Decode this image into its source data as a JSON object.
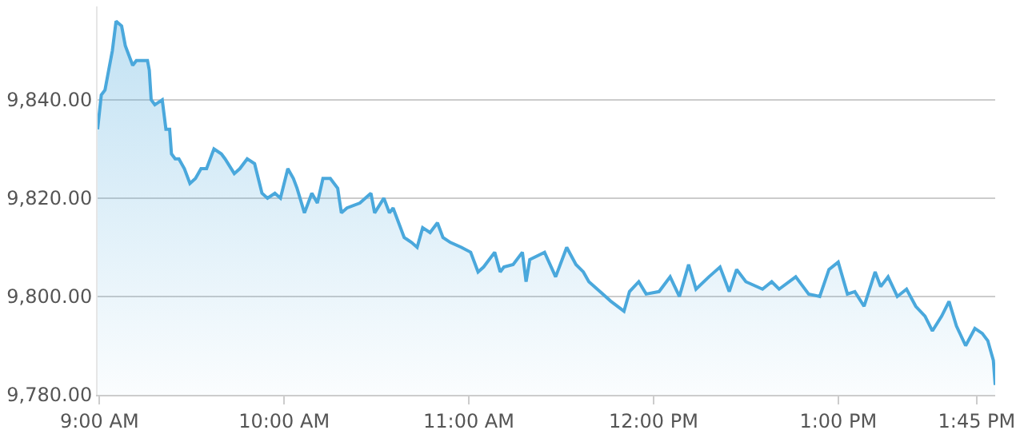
{
  "chart_data": {
    "type": "area",
    "x": [
      8.99,
      9.01,
      9.03,
      9.05,
      9.07,
      9.09,
      9.12,
      9.14,
      9.18,
      9.2,
      9.26,
      9.27,
      9.28,
      9.3,
      9.34,
      9.36,
      9.38,
      9.39,
      9.41,
      9.43,
      9.46,
      9.49,
      9.52,
      9.55,
      9.58,
      9.62,
      9.66,
      9.68,
      9.73,
      9.76,
      9.8,
      9.84,
      9.88,
      9.91,
      9.95,
      9.98,
      10.02,
      10.05,
      10.07,
      10.11,
      10.15,
      10.18,
      10.21,
      10.25,
      10.29,
      10.31,
      10.34,
      10.41,
      10.47,
      10.49,
      10.54,
      10.57,
      10.59,
      10.65,
      10.69,
      10.72,
      10.75,
      10.79,
      10.83,
      10.86,
      10.9,
      10.96,
      11.01,
      11.05,
      11.08,
      11.14,
      11.17,
      11.19,
      11.24,
      11.29,
      11.31,
      11.33,
      11.41,
      11.47,
      11.53,
      11.58,
      11.62,
      11.65,
      11.71,
      11.77,
      11.84,
      11.87,
      11.92,
      11.96,
      12.03,
      12.09,
      12.14,
      12.19,
      12.23,
      12.3,
      12.36,
      12.41,
      12.45,
      12.5,
      12.59,
      12.64,
      12.68,
      12.77,
      12.81,
      12.84,
      12.9,
      12.95,
      13.0,
      13.05,
      13.09,
      13.14,
      13.2,
      13.23,
      13.27,
      13.32,
      13.37,
      13.42,
      13.47,
      13.51,
      13.56,
      13.6,
      13.64,
      13.69,
      13.74,
      13.78,
      13.81,
      13.84,
      13.85
    ],
    "series": [
      {
        "color": "#4aa8dc",
        "values": [
          9834,
          9841,
          9842,
          9846,
          9850,
          9856,
          9855,
          9851,
          9847,
          9848,
          9848,
          9846,
          9840,
          9839,
          9840,
          9834,
          9834,
          9829,
          9828,
          9828,
          9826,
          9823,
          9824,
          9826,
          9826,
          9830,
          9829,
          9828,
          9825,
          9826,
          9828,
          9827,
          9821,
          9820,
          9821,
          9820,
          9826,
          9824,
          9822,
          9817,
          9821,
          9819,
          9824,
          9824,
          9822,
          9817,
          9818,
          9819,
          9821,
          9817,
          9820,
          9817,
          9818,
          9812,
          9811,
          9810,
          9814,
          9813,
          9815,
          9812,
          9811,
          9810,
          9809,
          9805,
          9806,
          9809,
          9805,
          9806,
          9806.5,
          9809,
          9803,
          9807.5,
          9809,
          9804,
          9810,
          9806.5,
          9805,
          9803,
          9801,
          9799,
          9797,
          9801,
          9803,
          9800.5,
          9801,
          9804,
          9800,
          9806.5,
          9801.5,
          9804,
          9806,
          9801,
          9805.5,
          9803,
          9801.5,
          9803,
          9801.5,
          9804,
          9802,
          9800.5,
          9800,
          9805.5,
          9807,
          9800.5,
          9801,
          9798,
          9805,
          9802,
          9804,
          9800,
          9801.5,
          9798,
          9796,
          9793,
          9796,
          9799,
          9794,
          9790,
          9793.5,
          9792.5,
          9791,
          9787,
          9782
        ]
      }
    ],
    "xlim": [
      8.99,
      13.85
    ],
    "xticks": [
      {
        "value": 9,
        "label": "9:00 AM"
      },
      {
        "value": 10,
        "label": "10:00 AM"
      },
      {
        "value": 11,
        "label": "11:00 AM"
      },
      {
        "value": 12,
        "label": "12:00 PM"
      },
      {
        "value": 13,
        "label": "1:00 PM"
      },
      {
        "value": 13.75,
        "label": "1:45 PM"
      }
    ],
    "ylim": [
      9780,
      9859
    ],
    "yticks": [
      {
        "value": 9780,
        "label": "9,780.00"
      },
      {
        "value": 9800,
        "label": "9,800.00"
      },
      {
        "value": 9820,
        "label": "9,820.00"
      },
      {
        "value": 9840,
        "label": "9,840.00"
      }
    ],
    "grid": "y"
  }
}
